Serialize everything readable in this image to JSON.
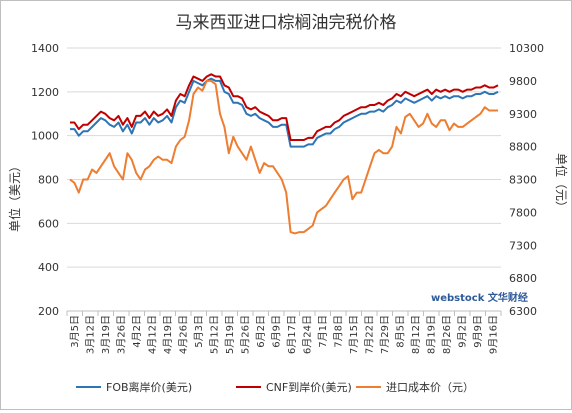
{
  "chart_data": {
    "type": "line",
    "title": "马来西亚进口棕榈油完税价格",
    "ylabel_left": "单位（美元）",
    "ylabel_right": "单位（元）",
    "ylim_left": [
      200,
      1400
    ],
    "yticks_left": [
      200,
      400,
      600,
      800,
      1000,
      1200,
      1400
    ],
    "ylim_right": [
      6300,
      10300
    ],
    "yticks_right": [
      6300,
      6800,
      7300,
      7800,
      8300,
      8800,
      9300,
      9800,
      10300
    ],
    "x_tick_labels": [
      "3月5日",
      "3月12日",
      "3月19日",
      "3月26日",
      "4月2日",
      "4月12日",
      "4月19日",
      "4月26日",
      "5月3日",
      "5月12日",
      "5月19日",
      "5月26日",
      "6月2日",
      "6月9日",
      "6月17日",
      "6月24日",
      "7月1日",
      "7月8日",
      "7月15日",
      "7月22日",
      "7月29日",
      "8月5日",
      "8月12日",
      "8月19日",
      "8月26日",
      "9月2日",
      "9月9日",
      "9月16日"
    ],
    "series": [
      {
        "name": "FOB离岸价(美元)",
        "axis": "left",
        "color": "#2e75b6",
        "values": [
          1030,
          1030,
          1000,
          1020,
          1020,
          1040,
          1060,
          1080,
          1070,
          1050,
          1040,
          1060,
          1020,
          1050,
          1010,
          1060,
          1060,
          1080,
          1050,
          1080,
          1060,
          1070,
          1090,
          1060,
          1130,
          1160,
          1150,
          1200,
          1250,
          1240,
          1230,
          1250,
          1260,
          1250,
          1250,
          1200,
          1190,
          1150,
          1150,
          1140,
          1100,
          1090,
          1100,
          1080,
          1070,
          1060,
          1040,
          1040,
          1050,
          1050,
          950,
          950,
          950,
          950,
          960,
          960,
          990,
          1000,
          1010,
          1010,
          1030,
          1040,
          1060,
          1070,
          1080,
          1090,
          1100,
          1100,
          1110,
          1110,
          1120,
          1110,
          1130,
          1140,
          1160,
          1150,
          1170,
          1160,
          1150,
          1160,
          1170,
          1180,
          1160,
          1180,
          1170,
          1180,
          1170,
          1180,
          1180,
          1170,
          1180,
          1180,
          1190,
          1190,
          1200,
          1190,
          1190,
          1200
        ]
      },
      {
        "name": "CNF到岸价(美元)",
        "axis": "left",
        "color": "#c00000",
        "values": [
          1060,
          1060,
          1030,
          1050,
          1050,
          1070,
          1090,
          1110,
          1100,
          1080,
          1070,
          1090,
          1050,
          1080,
          1040,
          1090,
          1090,
          1110,
          1080,
          1110,
          1090,
          1100,
          1120,
          1090,
          1160,
          1190,
          1180,
          1230,
          1270,
          1260,
          1250,
          1270,
          1280,
          1270,
          1270,
          1230,
          1220,
          1180,
          1180,
          1170,
          1130,
          1120,
          1130,
          1110,
          1100,
          1090,
          1070,
          1070,
          1080,
          1080,
          980,
          980,
          980,
          980,
          990,
          990,
          1020,
          1030,
          1040,
          1040,
          1060,
          1070,
          1090,
          1100,
          1110,
          1120,
          1130,
          1130,
          1140,
          1140,
          1150,
          1140,
          1160,
          1170,
          1190,
          1180,
          1200,
          1190,
          1180,
          1190,
          1200,
          1210,
          1190,
          1210,
          1200,
          1210,
          1200,
          1210,
          1210,
          1200,
          1210,
          1210,
          1220,
          1220,
          1230,
          1220,
          1220,
          1230
        ]
      },
      {
        "name": "进口成本价（元）",
        "axis": "right",
        "color": "#ed7d31",
        "values": [
          8300,
          8250,
          8100,
          8300,
          8300,
          8450,
          8400,
          8500,
          8600,
          8700,
          8500,
          8400,
          8300,
          8700,
          8600,
          8400,
          8300,
          8450,
          8500,
          8600,
          8650,
          8600,
          8600,
          8550,
          8800,
          8900,
          8950,
          9200,
          9600,
          9700,
          9650,
          9800,
          9800,
          9750,
          9300,
          9100,
          8700,
          8950,
          8800,
          8700,
          8600,
          8800,
          8600,
          8400,
          8550,
          8500,
          8500,
          8400,
          8300,
          8100,
          7500,
          7480,
          7500,
          7500,
          7550,
          7600,
          7800,
          7850,
          7900,
          8000,
          8100,
          8200,
          8300,
          8350,
          8000,
          8100,
          8100,
          8300,
          8500,
          8700,
          8750,
          8700,
          8700,
          8800,
          9100,
          9000,
          9250,
          9300,
          9200,
          9100,
          9150,
          9300,
          9150,
          9100,
          9200,
          9200,
          9050,
          9150,
          9100,
          9100,
          9150,
          9200,
          9250,
          9300,
          9400,
          9350,
          9350,
          9350
        ]
      }
    ],
    "legend_position": "bottom",
    "grid": true,
    "watermark": "webstock 文华财经"
  }
}
